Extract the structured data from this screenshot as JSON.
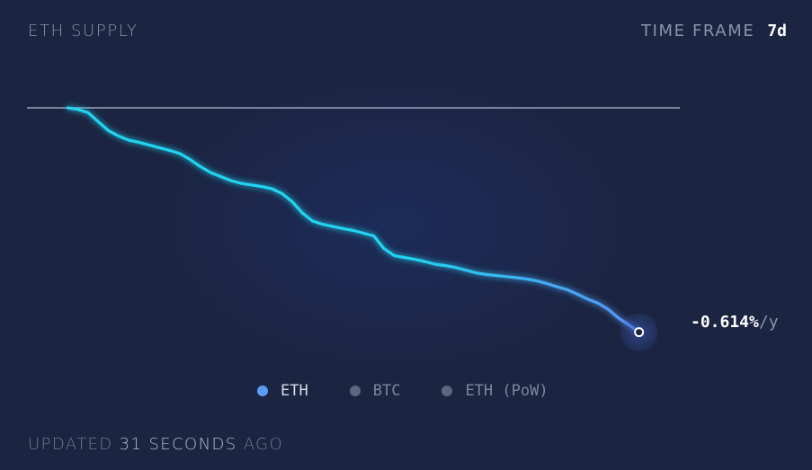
{
  "header": {
    "title": "ETH SUPPLY",
    "timeframe_label": "TIME FRAME",
    "timeframe_value": "7d"
  },
  "rate": {
    "value": "-0.614%",
    "unit": "/y"
  },
  "legend": [
    {
      "label": "ETH",
      "color": "#5b9cf5",
      "active": true
    },
    {
      "label": "BTC",
      "color": "#5d6680",
      "active": false
    },
    {
      "label": "ETH (PoW)",
      "color": "#5d6680",
      "active": false
    }
  ],
  "footer": {
    "prefix": "UPDATED",
    "amount": "31 SECONDS",
    "suffix": "AGO"
  },
  "colors": {
    "background": "#1b2440",
    "line_start": "#22d3f0",
    "line_end": "#5b8ff5",
    "baseline": "#9aa3bd"
  },
  "chart_data": {
    "type": "line",
    "title": "ETH SUPPLY",
    "xlabel": "",
    "ylabel": "",
    "grid": false,
    "x": [
      0,
      0.125,
      0.25,
      0.375,
      0.5,
      0.625,
      0.75,
      0.875,
      1.0,
      1.125,
      1.25,
      1.375,
      1.5,
      1.625,
      1.75,
      1.875,
      2.0,
      2.125,
      2.25,
      2.375,
      2.5,
      2.625,
      2.75,
      2.875,
      3.0,
      3.125,
      3.25,
      3.375,
      3.5,
      3.625,
      3.75,
      3.875,
      4.0,
      4.125,
      4.25,
      4.375,
      4.5,
      4.625,
      4.75,
      4.875,
      5.0,
      5.125,
      5.25,
      5.375,
      5.5,
      5.625,
      5.75,
      5.875,
      6.0,
      6.125,
      6.25,
      6.375,
      6.5,
      6.625,
      6.75,
      6.875,
      7.0
    ],
    "y": [
      0,
      -0.006,
      -0.018,
      -0.052,
      -0.085,
      -0.105,
      -0.12,
      -0.128,
      -0.138,
      -0.148,
      -0.158,
      -0.17,
      -0.192,
      -0.218,
      -0.24,
      -0.255,
      -0.27,
      -0.28,
      -0.286,
      -0.292,
      -0.3,
      -0.318,
      -0.348,
      -0.39,
      -0.42,
      -0.432,
      -0.44,
      -0.448,
      -0.455,
      -0.465,
      -0.475,
      -0.522,
      -0.548,
      -0.555,
      -0.562,
      -0.57,
      -0.58,
      -0.585,
      -0.592,
      -0.602,
      -0.612,
      -0.618,
      -0.622,
      -0.626,
      -0.63,
      -0.635,
      -0.642,
      -0.652,
      -0.664,
      -0.675,
      -0.692,
      -0.71,
      -0.725,
      -0.748,
      -0.78,
      -0.805,
      -0.832
    ],
    "baseline": 0,
    "xlim": [
      -0.5,
      7.5
    ],
    "ylim": [
      -1.0,
      0.2
    ],
    "series": [
      {
        "name": "ETH",
        "values_ref": "y"
      }
    ],
    "end_label": "-0.614%/y"
  }
}
